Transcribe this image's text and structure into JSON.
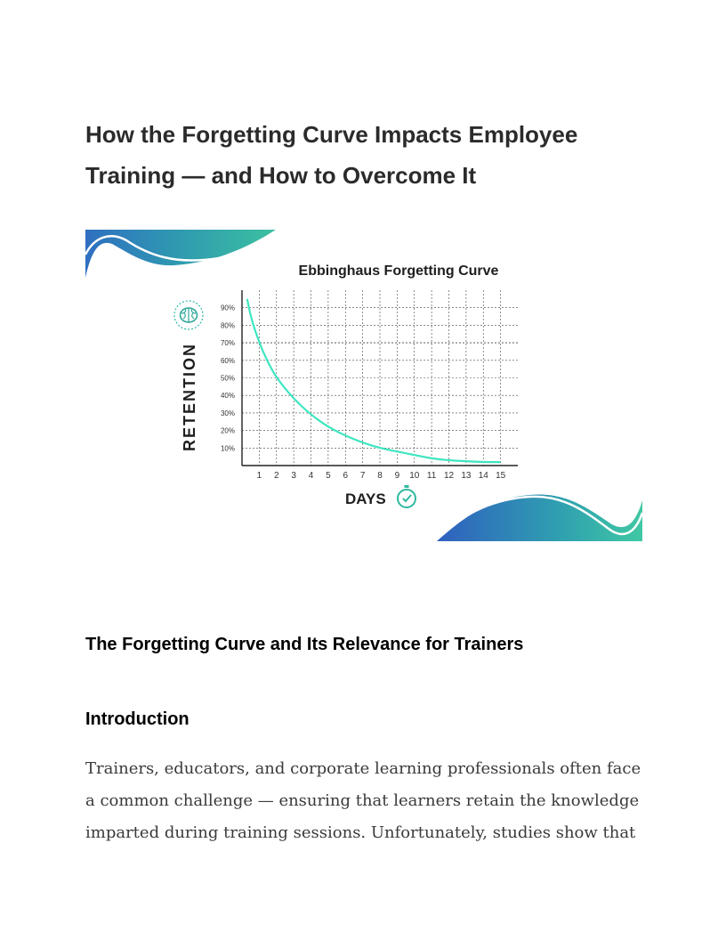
{
  "document": {
    "title": "How the Forgetting Curve Impacts Employee Training — and How to Overcome It",
    "section_heading": "The Forgetting Curve and Its Relevance for Trainers",
    "subheading": "Introduction",
    "paragraph": "Trainers, educators, and corporate learning professionals often face a common challenge — ensuring that learners retain the knowledge imparted during training sessions. Unfortunately, studies show that"
  },
  "chart_data": {
    "type": "line",
    "title": "Ebbinghaus Forgetting Curve",
    "xlabel": "DAYS",
    "ylabel": "RETENTION",
    "x_ticks": [
      "1",
      "2",
      "3",
      "4",
      "5",
      "6",
      "7",
      "8",
      "9",
      "10",
      "11",
      "12",
      "13",
      "14",
      "15"
    ],
    "y_ticks": [
      "10%",
      "20%",
      "30%",
      "40%",
      "50%",
      "60%",
      "70%",
      "80%",
      "90%"
    ],
    "xlim": [
      0,
      16
    ],
    "ylim": [
      0,
      100
    ],
    "grid": true,
    "series": [
      {
        "x": [
          0.3,
          0.5,
          1,
          1.5,
          2,
          3,
          4,
          5,
          6,
          7,
          8,
          9,
          10,
          11,
          12,
          13,
          14,
          15
        ],
        "y": [
          95,
          85,
          70,
          59,
          50,
          38,
          29,
          22,
          17,
          13,
          10,
          8,
          6,
          4,
          3,
          2.5,
          2,
          2
        ]
      }
    ],
    "colors": {
      "curve": "#3ee6c0",
      "axis": "#222222",
      "grid": "#444444"
    },
    "icons": [
      "brain-icon",
      "stopwatch-icon"
    ]
  }
}
